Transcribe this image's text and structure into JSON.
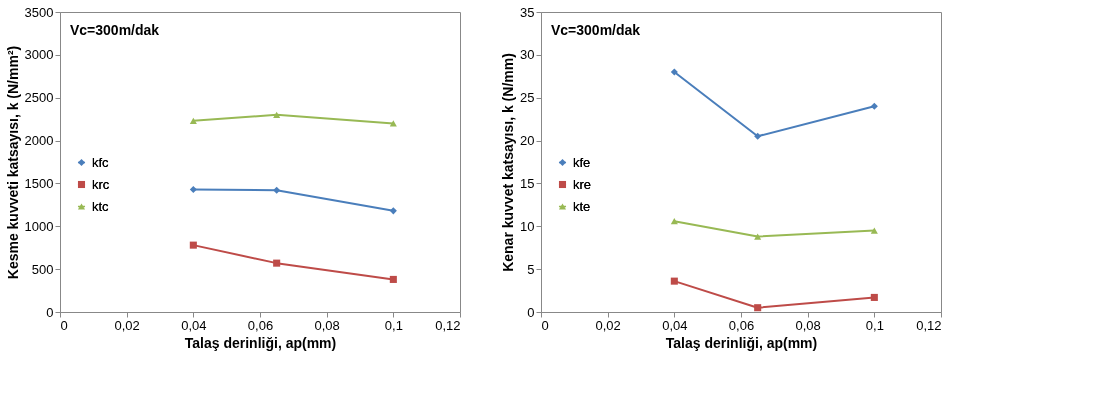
{
  "chart_data": [
    {
      "type": "line",
      "xlabel": "Talaş derinliği, ap(mm)",
      "ylabel": "Kesme kuvveti katsayısı, k (N/mm²)",
      "annotations": [
        "Vc=300m/dak"
      ],
      "x": [
        0.04,
        0.065,
        0.1
      ],
      "series": [
        {
          "name": "kfc",
          "color": "#4a7ebb",
          "marker": "diamond",
          "values": [
            1430,
            1420,
            1180
          ]
        },
        {
          "name": "krc",
          "color": "#be4b48",
          "marker": "square",
          "values": [
            780,
            570,
            380
          ]
        },
        {
          "name": "ktc",
          "color": "#98b954",
          "marker": "triangle",
          "values": [
            2230,
            2300,
            2200
          ]
        }
      ],
      "xlim": [
        0,
        0.12
      ],
      "xticks": [
        0,
        {
          "value": 0.02,
          "label": "0,02"
        },
        {
          "value": 0.04,
          "label": "0,04"
        },
        {
          "value": 0.06,
          "label": "0,06"
        },
        {
          "value": 0.08,
          "label": "0,08"
        },
        {
          "value": 0.1,
          "label": "0,1"
        },
        {
          "value": 0.12,
          "label": "0,12"
        }
      ],
      "ylim": [
        0,
        3500
      ],
      "yticks": [
        0,
        500,
        1000,
        1500,
        2000,
        2500,
        3000,
        3500
      ],
      "grid": false,
      "legend": "left"
    },
    {
      "type": "line",
      "xlabel": "Talaş derinliği, ap(mm)",
      "ylabel": "Kenar kuvvet katsayısı, k (N/mm)",
      "annotations": [
        "Vc=300m/dak"
      ],
      "x": [
        0.04,
        0.065,
        0.1
      ],
      "series": [
        {
          "name": "kfe",
          "color": "#4a7ebb",
          "marker": "diamond",
          "values": [
            28,
            20.5,
            24
          ]
        },
        {
          "name": "kre",
          "color": "#be4b48",
          "marker": "square",
          "values": [
            3.6,
            0.5,
            1.7
          ]
        },
        {
          "name": "kte",
          "color": "#98b954",
          "marker": "triangle",
          "values": [
            10.6,
            8.8,
            9.5
          ]
        }
      ],
      "xlim": [
        0,
        0.12
      ],
      "xticks": [
        0,
        {
          "value": 0.02,
          "label": "0,02"
        },
        {
          "value": 0.04,
          "label": "0,04"
        },
        {
          "value": 0.06,
          "label": "0,06"
        },
        {
          "value": 0.08,
          "label": "0,08"
        },
        {
          "value": 0.1,
          "label": "0,1"
        },
        {
          "value": 0.12,
          "label": "0,12"
        }
      ],
      "ylim": [
        0,
        35
      ],
      "yticks": [
        0,
        5,
        10,
        15,
        20,
        25,
        30,
        35
      ],
      "grid": false,
      "legend": "left"
    }
  ]
}
